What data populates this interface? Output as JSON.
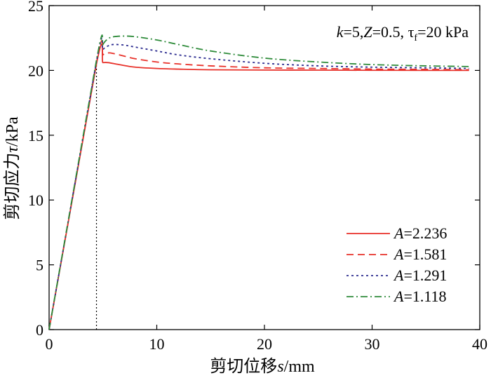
{
  "chart_data": {
    "type": "line",
    "xlabel": {
      "prefix": "剪切位移",
      "symbol": "s",
      "unit": "/mm"
    },
    "ylabel": {
      "prefix": "剪切应力",
      "symbol": "τ",
      "unit": "/kPa"
    },
    "xlim": [
      0,
      40
    ],
    "ylim": [
      0,
      25
    ],
    "xticks": [
      0,
      10,
      20,
      30,
      40
    ],
    "yticks": [
      0,
      5,
      10,
      15,
      20,
      25
    ],
    "grid": false,
    "legend_position": "bottom-right",
    "annotation": {
      "k": "k",
      "k_val": "=5,",
      "z": "Z",
      "z_val": "=0.5, ",
      "tau": "τ",
      "tau_sub": "f",
      "tau_val": "=20 kPa"
    },
    "vline_x": 4.4,
    "series": [
      {
        "name": "A",
        "label_value": "=2.236",
        "color": "#e8312a",
        "dash": "solid",
        "x": [
          0,
          4.4,
          5.0,
          5.5,
          6.5,
          8,
          10,
          12,
          15,
          20,
          25,
          30,
          35,
          39
        ],
        "y": [
          0,
          20.5,
          20.6,
          20.6,
          20.45,
          20.25,
          20.15,
          20.1,
          20.05,
          20.03,
          20.02,
          20.01,
          20.0,
          20.0
        ]
      },
      {
        "name": "A",
        "label_value": "=1.581",
        "color": "#e8312a",
        "dash": "10,6",
        "x": [
          0,
          4.4,
          5.0,
          5.5,
          6.0,
          7,
          8,
          10,
          12,
          15,
          20,
          25,
          30,
          35,
          39
        ],
        "y": [
          0,
          20.6,
          21.2,
          21.35,
          21.3,
          21.1,
          20.9,
          20.65,
          20.5,
          20.35,
          20.2,
          20.15,
          20.1,
          20.08,
          20.05
        ]
      },
      {
        "name": "A",
        "label_value": "=1.291",
        "color": "#2b2b8f",
        "dash": "3,4",
        "x": [
          0,
          4.4,
          5.0,
          5.5,
          6.0,
          7,
          8,
          10,
          12,
          15,
          20,
          25,
          30,
          35,
          39
        ],
        "y": [
          0,
          20.7,
          21.6,
          21.9,
          22.0,
          21.95,
          21.8,
          21.5,
          21.2,
          20.9,
          20.55,
          20.35,
          20.25,
          20.2,
          20.15
        ]
      },
      {
        "name": "A",
        "label_value": "=1.118",
        "color": "#2e8b3a",
        "dash": "10,4,2,4",
        "x": [
          0,
          4.4,
          5.0,
          5.5,
          6.0,
          7,
          8,
          10,
          12,
          15,
          20,
          25,
          30,
          35,
          39
        ],
        "y": [
          0,
          20.8,
          22.0,
          22.45,
          22.6,
          22.65,
          22.6,
          22.35,
          22.0,
          21.5,
          20.95,
          20.65,
          20.45,
          20.35,
          20.3
        ]
      }
    ]
  }
}
